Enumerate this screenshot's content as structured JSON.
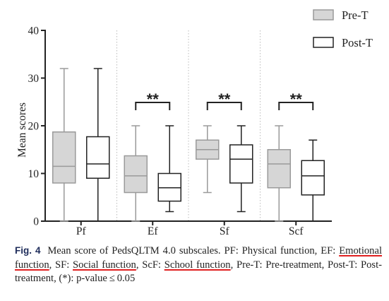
{
  "chart_data": {
    "type": "box",
    "ylabel": "Mean scores",
    "ylim": [
      0,
      40
    ],
    "yticks": [
      "0",
      "10",
      "20",
      "30",
      "40"
    ],
    "categories": [
      "Pf",
      "Ef",
      "Sf",
      "Scf"
    ],
    "legend": {
      "placement": "top-right",
      "entries": [
        "Pre-T",
        "Post-T"
      ]
    },
    "series": [
      {
        "name": "Pre-T",
        "color": "#d6d6d6",
        "boxes": [
          {
            "min": 0,
            "q1": 8,
            "median": 11.5,
            "q3": 18.7,
            "max": 32
          },
          {
            "min": 0,
            "q1": 6,
            "median": 9.5,
            "q3": 13.7,
            "max": 20
          },
          {
            "min": 6,
            "q1": 13,
            "median": 15,
            "q3": 17,
            "max": 20
          },
          {
            "min": 0,
            "q1": 7,
            "median": 12,
            "q3": 15,
            "max": 20
          }
        ]
      },
      {
        "name": "Post-T",
        "color": "#ffffff",
        "boxes": [
          {
            "min": 0,
            "q1": 9,
            "median": 12,
            "q3": 17.7,
            "max": 32
          },
          {
            "min": 2,
            "q1": 4.2,
            "median": 7,
            "q3": 10,
            "max": 20
          },
          {
            "min": 2,
            "q1": 8,
            "median": 13,
            "q3": 16,
            "max": 20
          },
          {
            "min": 0,
            "q1": 5.5,
            "median": 9.5,
            "q3": 12.7,
            "max": 17
          }
        ]
      }
    ],
    "significance": [
      {
        "category": "Ef",
        "label": "**"
      },
      {
        "category": "Sf",
        "label": "**"
      },
      {
        "category": "Scf",
        "label": "**"
      }
    ]
  },
  "caption": {
    "label": "Fig. 4",
    "part1": "Mean score of PedsQLTM 4.0 subscales. PF: Physical function, EF: ",
    "ef": "Emotional function",
    "part2": ", SF: ",
    "sf": "Social function",
    "part3": ", ScF: ",
    "scf": "School function",
    "part4": ", Pre-T: Pre-treatment, Post-T: Post-treatment, (*): p-value ≤ 0.05"
  }
}
